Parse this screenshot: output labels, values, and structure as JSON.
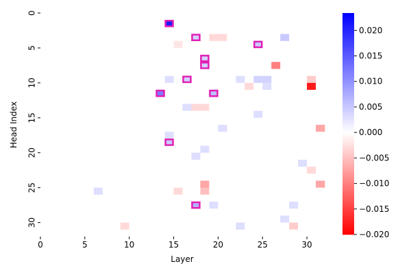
{
  "chart_data": {
    "type": "heatmap",
    "xlabel": "Layer",
    "ylabel": "Head Index",
    "xlim": [
      0,
      32
    ],
    "ylim": [
      0,
      32
    ],
    "xticks": [
      0,
      5,
      10,
      15,
      20,
      25,
      30
    ],
    "yticks": [
      0,
      5,
      10,
      15,
      20,
      25,
      30
    ],
    "zlim": [
      -0.02,
      0.0234
    ],
    "colorbar_ticks": [
      {
        "value": 0.02,
        "label": "0.020"
      },
      {
        "value": 0.015,
        "label": "0.015"
      },
      {
        "value": 0.01,
        "label": "0.010"
      },
      {
        "value": 0.005,
        "label": "0.005"
      },
      {
        "value": 0,
        "label": "0.000"
      },
      {
        "value": -0.005,
        "label": "−0.005"
      },
      {
        "value": -0.01,
        "label": "−0.010"
      },
      {
        "value": -0.015,
        "label": "−0.015"
      },
      {
        "value": -0.02,
        "label": "−0.020"
      }
    ],
    "positive_color": "#0000ff",
    "negative_color": "#ff0000",
    "highlight_color": "#e21fb4",
    "highlights": [
      [
        14,
        1
      ],
      [
        17,
        3
      ],
      [
        24,
        4
      ],
      [
        18,
        6
      ],
      [
        18,
        7
      ],
      [
        16,
        9
      ],
      [
        13,
        11
      ],
      [
        19,
        11
      ],
      [
        14,
        18
      ],
      [
        17,
        27
      ]
    ],
    "z": [
      [
        0,
        0,
        0,
        0,
        0,
        0,
        0,
        0,
        0,
        0,
        0,
        0,
        0,
        0,
        0,
        0,
        0,
        0,
        0,
        0,
        0,
        0,
        0,
        0,
        0,
        0,
        0,
        0,
        0,
        0,
        0,
        0
      ],
      [
        0,
        0,
        0,
        0,
        0,
        0,
        0,
        0,
        0,
        0,
        0,
        0,
        0,
        0,
        0.021,
        0,
        0,
        0,
        0,
        0,
        0,
        0,
        0,
        0,
        0,
        0,
        0,
        0,
        0,
        0,
        0,
        0
      ],
      [
        0,
        0,
        0,
        0,
        0,
        0,
        0,
        0,
        0,
        0,
        0,
        0,
        0,
        0,
        0,
        0,
        0,
        0,
        0,
        0,
        0,
        0,
        0,
        0,
        0,
        0,
        0,
        0,
        0,
        0,
        0,
        0
      ],
      [
        0,
        0,
        0,
        0,
        0,
        0,
        0,
        0,
        0,
        0,
        0,
        0,
        0,
        0,
        0,
        0,
        0,
        0.004,
        0,
        -0.003,
        -0.003,
        0,
        0,
        0,
        0,
        0,
        0,
        0.005,
        0,
        0,
        0,
        0
      ],
      [
        0,
        0,
        0,
        0,
        0,
        0,
        0,
        0,
        0,
        0,
        0,
        0,
        0,
        0,
        0,
        -0.002,
        0,
        0,
        0,
        0,
        0,
        0,
        0,
        0,
        0.005,
        0,
        0,
        0,
        0,
        0,
        0,
        0
      ],
      [
        0,
        0,
        0,
        0,
        0,
        0,
        0,
        0,
        0,
        0,
        0,
        0,
        0,
        0,
        0,
        0,
        0,
        0,
        0,
        0,
        0,
        0,
        0,
        0,
        0,
        0,
        0,
        0,
        0,
        0,
        0,
        0
      ],
      [
        0,
        0,
        0,
        0,
        0,
        0,
        0,
        0,
        0,
        0,
        0,
        0,
        0,
        0,
        0,
        0,
        0,
        0,
        0.004,
        0,
        0,
        0,
        0,
        0,
        0,
        0,
        0,
        0,
        0,
        0,
        0,
        0
      ],
      [
        0,
        0,
        0,
        0,
        0,
        0,
        0,
        0,
        0,
        0,
        0,
        0,
        0,
        0,
        0,
        0,
        0,
        0,
        0.004,
        0,
        0,
        0,
        0,
        0,
        0,
        0,
        -0.01,
        0,
        0,
        0,
        0,
        0
      ],
      [
        0,
        0,
        0,
        0,
        0,
        0,
        0,
        0,
        0,
        0,
        0,
        0,
        0,
        0,
        0,
        0,
        0,
        0,
        0,
        0,
        0,
        0,
        0,
        0,
        0,
        0,
        0,
        0,
        0,
        0,
        0,
        0
      ],
      [
        0,
        0,
        0,
        0,
        0,
        0,
        0,
        0,
        0,
        0,
        0,
        0,
        0,
        0,
        0.003,
        0,
        0.004,
        0,
        0,
        0,
        0,
        0,
        0.003,
        0,
        0.004,
        0.004,
        0,
        0,
        0,
        0,
        -0.004,
        0
      ],
      [
        0,
        0,
        0,
        0,
        0,
        0,
        0,
        0,
        0,
        0,
        0,
        0,
        0,
        0,
        0,
        0,
        0,
        0,
        0,
        0,
        0,
        0,
        0,
        -0.003,
        0,
        0.003,
        0,
        0,
        0,
        0,
        -0.018,
        0
      ],
      [
        0,
        0,
        0,
        0,
        0,
        0,
        0,
        0,
        0,
        0,
        0,
        0,
        0,
        0.012,
        0,
        0,
        0,
        0,
        0,
        0.006,
        0,
        0,
        0,
        0,
        0,
        0,
        0,
        0,
        0,
        0,
        0,
        0
      ],
      [
        0,
        0,
        0,
        0,
        0,
        0,
        0,
        0,
        0,
        0,
        0,
        0,
        0,
        0,
        0,
        0,
        0,
        0,
        0,
        0,
        0,
        0,
        0,
        0,
        0,
        0,
        0,
        0,
        0,
        0,
        0,
        0
      ],
      [
        0,
        0,
        0,
        0,
        0,
        0,
        0,
        0,
        0,
        0,
        0,
        0,
        0,
        0,
        0,
        0,
        0.003,
        -0.003,
        -0.003,
        0,
        0,
        0,
        0,
        0,
        0,
        0,
        0,
        0,
        0,
        0,
        0,
        0
      ],
      [
        0,
        0,
        0,
        0,
        0,
        0,
        0,
        0,
        0,
        0,
        0,
        0,
        0,
        0,
        0,
        0,
        0,
        0,
        0,
        0,
        0,
        0,
        0,
        0,
        0.003,
        0,
        0,
        0,
        0,
        0,
        0,
        0
      ],
      [
        0,
        0,
        0,
        0,
        0,
        0,
        0,
        0,
        0,
        0,
        0,
        0,
        0,
        0,
        0,
        0,
        0,
        0,
        0,
        0,
        0,
        0,
        0,
        0,
        0,
        0,
        0,
        0,
        0,
        0,
        0,
        0
      ],
      [
        0,
        0,
        0,
        0,
        0,
        0,
        0,
        0,
        0,
        0,
        0,
        0,
        0,
        0,
        0,
        0,
        0,
        0,
        0,
        0,
        0.003,
        0,
        0,
        0,
        0,
        0,
        0,
        0,
        0,
        0,
        0,
        -0.007
      ],
      [
        0,
        0,
        0,
        0,
        0,
        0,
        0,
        0,
        0,
        0,
        0,
        0,
        0,
        0,
        0.003,
        0,
        0,
        0,
        0,
        0,
        0,
        0,
        0,
        0,
        0,
        0,
        0,
        0,
        0,
        0,
        0,
        0
      ],
      [
        0,
        0,
        0,
        0,
        0,
        0,
        0,
        0,
        0,
        0,
        0,
        0,
        0,
        0,
        0.005,
        0,
        0,
        0,
        0,
        0,
        0,
        0,
        0,
        0,
        0,
        0,
        0,
        0,
        0,
        0,
        0,
        0
      ],
      [
        0,
        0,
        0,
        0,
        0,
        0,
        0,
        0,
        0,
        0,
        0,
        0,
        0,
        0,
        0,
        0,
        0,
        0,
        0.003,
        0,
        0,
        0,
        0,
        0,
        0,
        0,
        0,
        0,
        0,
        0,
        0,
        0
      ],
      [
        0,
        0,
        0,
        0,
        0,
        0,
        0,
        0,
        0,
        0,
        0,
        0,
        0,
        0,
        0,
        0,
        0,
        0.003,
        0,
        0,
        0,
        0,
        0,
        0,
        0,
        0,
        0,
        0,
        0,
        0,
        0,
        0
      ],
      [
        0,
        0,
        0,
        0,
        0,
        0,
        0,
        0,
        0,
        0,
        0,
        0,
        0,
        0,
        0,
        0,
        0,
        0,
        0,
        0,
        0,
        0,
        0,
        0,
        0,
        0,
        0,
        0,
        0,
        0.003,
        0,
        0
      ],
      [
        0,
        0,
        0,
        0,
        0,
        0,
        0,
        0,
        0,
        0,
        0,
        0,
        0,
        0,
        0,
        0,
        0,
        0,
        0,
        0,
        0,
        0,
        0,
        0,
        0,
        0,
        0,
        0,
        0,
        0,
        -0.003,
        0
      ],
      [
        0,
        0,
        0,
        0,
        0,
        0,
        0,
        0,
        0,
        0,
        0,
        0,
        0,
        0,
        0,
        0,
        0,
        0,
        0,
        0,
        0,
        0,
        0,
        0,
        0,
        0,
        0,
        0,
        0,
        0,
        0,
        0
      ],
      [
        0,
        0,
        0,
        0,
        0,
        0,
        0,
        0,
        0,
        0,
        0,
        0,
        0,
        0,
        0,
        0,
        0,
        0,
        -0.007,
        0,
        0,
        0,
        0,
        0,
        0,
        0,
        0,
        0,
        0,
        0,
        0,
        -0.007
      ],
      [
        0,
        0,
        0,
        0,
        0,
        0,
        0.003,
        0,
        0,
        0,
        0,
        0,
        0,
        0,
        0,
        -0.003,
        0,
        0,
        -0.005,
        0,
        0,
        0,
        0,
        0,
        0,
        0,
        0,
        0,
        0,
        0,
        0,
        0
      ],
      [
        0,
        0,
        0,
        0,
        0,
        0,
        0,
        0,
        0,
        0,
        0,
        0,
        0,
        0,
        0,
        0,
        0,
        0,
        0,
        0,
        0,
        0,
        0,
        0,
        0,
        0,
        0,
        0,
        0,
        0,
        0,
        0
      ],
      [
        0,
        0,
        0,
        0,
        0,
        0,
        0,
        0,
        0,
        0,
        0,
        0,
        0,
        0,
        0,
        0,
        0,
        0.007,
        0,
        0.003,
        0,
        0,
        0,
        0,
        0,
        0,
        0,
        0,
        0.003,
        0,
        0,
        0
      ],
      [
        0,
        0,
        0,
        0,
        0,
        0,
        0,
        0,
        0,
        0,
        0,
        0,
        0,
        0,
        0,
        0,
        0,
        0,
        0,
        0,
        0,
        0,
        0,
        0,
        0,
        0,
        0,
        0,
        0,
        0,
        0,
        0
      ],
      [
        0,
        0,
        0,
        0,
        0,
        0,
        0,
        0,
        0,
        0,
        0,
        0,
        0,
        0,
        0,
        0,
        0,
        0,
        0,
        0,
        0,
        0,
        0,
        0,
        0,
        0,
        0,
        0.003,
        0,
        0,
        0,
        0
      ],
      [
        0,
        0,
        0,
        0,
        0,
        0,
        0,
        0,
        0,
        -0.003,
        0,
        0,
        0,
        0,
        0,
        0,
        0,
        0,
        0,
        0,
        0,
        0,
        0.003,
        0,
        0,
        0,
        0,
        0,
        -0.004,
        0,
        0,
        0
      ],
      [
        0,
        0,
        0,
        0,
        0,
        0,
        0,
        0,
        0,
        0,
        0,
        0,
        0,
        0,
        0,
        0,
        0,
        0,
        0,
        0,
        0,
        0,
        0,
        0,
        0,
        0,
        0,
        0,
        0,
        0,
        0,
        0
      ]
    ]
  }
}
